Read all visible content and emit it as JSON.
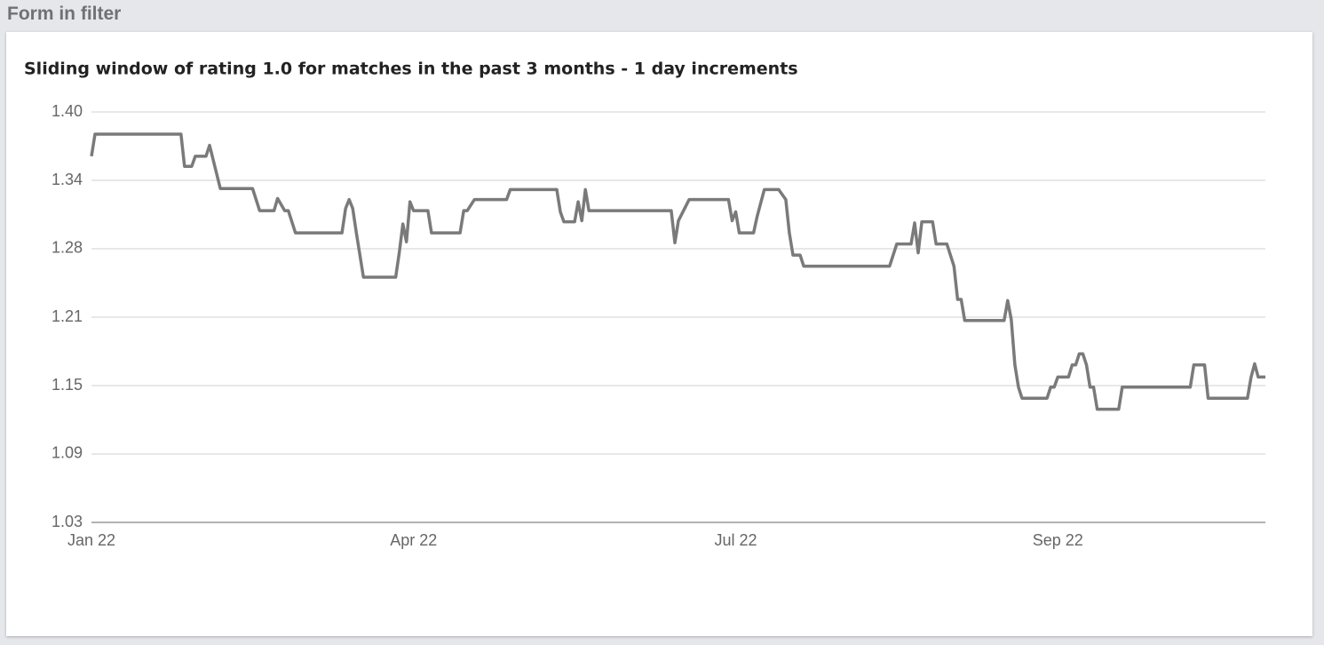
{
  "panel_title": "Form in filter",
  "chart_data": {
    "type": "line",
    "title": "Sliding window of rating 1.0 for matches in the past 3 months - 1 day increments",
    "color": "#7a7a7a",
    "grid": true,
    "x": [
      0,
      1,
      25,
      26,
      28,
      29,
      32,
      33,
      36,
      45,
      47,
      51,
      52,
      54,
      55,
      57,
      70,
      71,
      72,
      73,
      74,
      76,
      85,
      86,
      87,
      88,
      89,
      90,
      94,
      95,
      103,
      104,
      105,
      107,
      116,
      117,
      130,
      131,
      132,
      135,
      136,
      137,
      138,
      139,
      162,
      163,
      164,
      167,
      178,
      179,
      180,
      181,
      185,
      186,
      188,
      192,
      194,
      195,
      196,
      198,
      199,
      223,
      225,
      229,
      230,
      231,
      232,
      235,
      236,
      239,
      241,
      242,
      243,
      244,
      255,
      256,
      257,
      258,
      259,
      260,
      267,
      268,
      269,
      270,
      273,
      274,
      275,
      276,
      277,
      278,
      279,
      280,
      281,
      287,
      288,
      307,
      308,
      311,
      312,
      323,
      324,
      325,
      326,
      328
    ],
    "values": [
      1.36,
      1.38,
      1.38,
      1.351,
      1.351,
      1.36,
      1.36,
      1.37,
      1.331,
      1.331,
      1.311,
      1.311,
      1.322,
      1.311,
      1.311,
      1.291,
      1.291,
      1.313,
      1.321,
      1.313,
      1.291,
      1.251,
      1.251,
      1.273,
      1.299,
      1.283,
      1.319,
      1.311,
      1.311,
      1.291,
      1.291,
      1.311,
      1.311,
      1.321,
      1.321,
      1.33,
      1.33,
      1.31,
      1.301,
      1.301,
      1.319,
      1.302,
      1.33,
      1.311,
      1.311,
      1.282,
      1.302,
      1.321,
      1.321,
      1.302,
      1.31,
      1.291,
      1.291,
      1.306,
      1.33,
      1.33,
      1.321,
      1.291,
      1.271,
      1.271,
      1.261,
      1.261,
      1.281,
      1.281,
      1.3,
      1.273,
      1.301,
      1.301,
      1.281,
      1.281,
      1.261,
      1.231,
      1.231,
      1.212,
      1.212,
      1.23,
      1.213,
      1.172,
      1.152,
      1.142,
      1.142,
      1.152,
      1.152,
      1.161,
      1.161,
      1.172,
      1.172,
      1.182,
      1.182,
      1.172,
      1.152,
      1.152,
      1.132,
      1.132,
      1.152,
      1.152,
      1.172,
      1.172,
      1.142,
      1.142,
      1.161,
      1.173,
      1.161,
      1.161
    ],
    "xlim": [
      0,
      328
    ],
    "xticks": [
      {
        "value": 0,
        "label": "Jan 22"
      },
      {
        "value": 90,
        "label": "Apr 22"
      },
      {
        "value": 180,
        "label": "Jul 22"
      },
      {
        "value": 270,
        "label": "Sep 22"
      }
    ],
    "ylim": [
      1.03,
      1.4
    ],
    "yticks": [
      {
        "value": 1.03,
        "label": "1.03"
      },
      {
        "value": 1.0917,
        "label": "1.09"
      },
      {
        "value": 1.1533,
        "label": "1.15"
      },
      {
        "value": 1.215,
        "label": "1.21"
      },
      {
        "value": 1.2767,
        "label": "1.28"
      },
      {
        "value": 1.3383,
        "label": "1.34"
      },
      {
        "value": 1.4,
        "label": "1.40"
      }
    ]
  }
}
